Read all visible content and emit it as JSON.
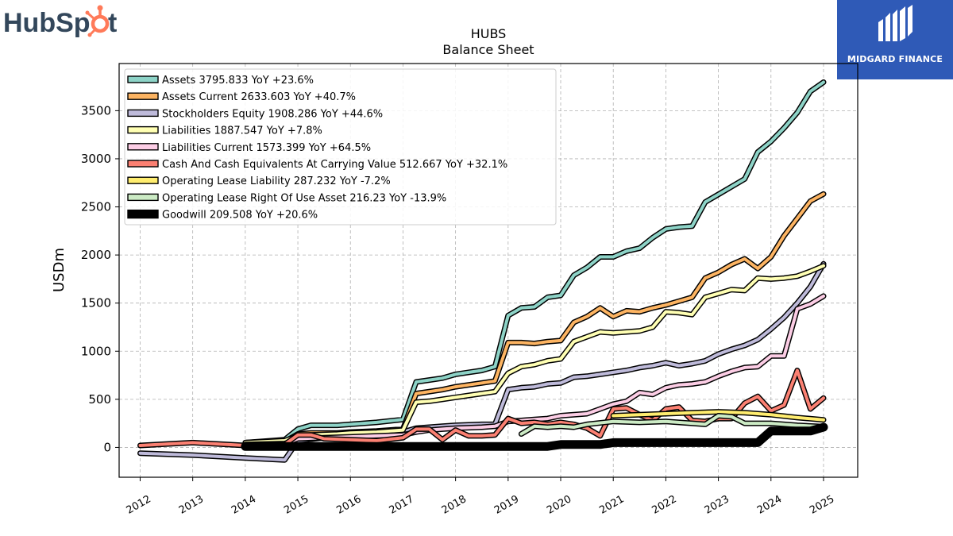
{
  "branding": {
    "left_logo_text": "HubSpot",
    "right_logo_text": "MIDGARD FINANCE",
    "hubspot_color": "#33475b",
    "hubspot_accent": "#ff7a59",
    "midgard_bg": "#2f5ab7"
  },
  "chart_data": {
    "type": "line",
    "title": "HUBS",
    "subtitle": "Balance  Sheet",
    "ylabel": "USDm",
    "xlabel": "",
    "xlim": [
      2011.6,
      2025.65
    ],
    "ylim": [
      -310,
      3990
    ],
    "yticks": [
      0,
      500,
      1000,
      1500,
      2000,
      2500,
      3000,
      3500
    ],
    "xticks": [
      "2012",
      "2013",
      "2014",
      "2015",
      "2016",
      "2017",
      "2018",
      "2019",
      "2020",
      "2021",
      "2022",
      "2023",
      "2024",
      "2025"
    ],
    "grid": true,
    "legend_position": "top-left",
    "series": [
      {
        "name": "Assets  3795.833 YoY +23.6%",
        "color": "#8dd3c7",
        "width": 4,
        "x": [
          2014.0,
          2014.75,
          2015.0,
          2015.25,
          2015.75,
          2016.0,
          2016.5,
          2017.0,
          2017.25,
          2017.5,
          2017.75,
          2018.0,
          2018.25,
          2018.5,
          2018.75,
          2019.0,
          2019.25,
          2019.5,
          2019.75,
          2020.0,
          2020.25,
          2020.5,
          2020.75,
          2021.0,
          2021.25,
          2021.5,
          2021.75,
          2022.0,
          2022.25,
          2022.5,
          2022.75,
          2023.0,
          2023.25,
          2023.5,
          2023.75,
          2024.0,
          2024.25,
          2024.5,
          2024.75,
          2025.0
        ],
        "y": [
          50,
          80,
          190,
          230,
          230,
          240,
          260,
          290,
          680,
          700,
          720,
          760,
          780,
          800,
          840,
          1370,
          1450,
          1460,
          1560,
          1580,
          1790,
          1870,
          1980,
          1980,
          2040,
          2070,
          2180,
          2270,
          2290,
          2300,
          2550,
          2630,
          2710,
          2790,
          3070,
          3180,
          3320,
          3480,
          3700,
          3796
        ]
      },
      {
        "name": "Assets Current  2633.603 YoY +40.7%",
        "color": "#fdb462",
        "width": 4,
        "x": [
          2014.0,
          2014.75,
          2015.0,
          2015.25,
          2015.75,
          2016.0,
          2016.5,
          2017.0,
          2017.25,
          2017.5,
          2017.75,
          2018.0,
          2018.25,
          2018.5,
          2018.75,
          2019.0,
          2019.25,
          2019.5,
          2019.75,
          2020.0,
          2020.25,
          2020.5,
          2020.75,
          2021.0,
          2021.25,
          2021.5,
          2021.75,
          2022.0,
          2022.25,
          2022.5,
          2022.75,
          2023.0,
          2023.25,
          2023.5,
          2023.75,
          2024.0,
          2024.25,
          2024.5,
          2024.75,
          2025.0
        ],
        "y": [
          40,
          60,
          140,
          150,
          150,
          160,
          170,
          190,
          560,
          580,
          600,
          630,
          650,
          670,
          690,
          1090,
          1090,
          1080,
          1100,
          1110,
          1300,
          1360,
          1450,
          1360,
          1420,
          1410,
          1450,
          1480,
          1520,
          1560,
          1760,
          1820,
          1900,
          1960,
          1860,
          1980,
          2200,
          2380,
          2560,
          2634
        ]
      },
      {
        "name": "Stockholders Equity  1908.286 YoY +44.6%",
        "color": "#bebada",
        "width": 4,
        "x": [
          2012.0,
          2013.0,
          2014.0,
          2014.75,
          2015.0,
          2015.5,
          2016.0,
          2016.5,
          2017.0,
          2017.25,
          2017.5,
          2017.75,
          2018.0,
          2018.5,
          2018.75,
          2019.0,
          2019.25,
          2019.5,
          2019.75,
          2020.0,
          2020.25,
          2020.5,
          2020.75,
          2021.0,
          2021.25,
          2021.5,
          2021.75,
          2022.0,
          2022.25,
          2022.5,
          2022.75,
          2023.0,
          2023.25,
          2023.5,
          2023.75,
          2024.0,
          2024.25,
          2024.5,
          2024.75,
          2025.0
        ],
        "y": [
          -60,
          -80,
          -110,
          -130,
          70,
          100,
          120,
          140,
          160,
          200,
          210,
          220,
          230,
          240,
          240,
          600,
          620,
          630,
          660,
          670,
          730,
          740,
          760,
          780,
          800,
          830,
          850,
          880,
          850,
          870,
          900,
          970,
          1020,
          1060,
          1120,
          1230,
          1350,
          1500,
          1670,
          1908
        ]
      },
      {
        "name": "Liabilities  1887.547 YoY +7.8%",
        "color": "#ffffb3",
        "width": 4,
        "x": [
          2014.0,
          2014.75,
          2015.0,
          2015.25,
          2015.75,
          2016.0,
          2016.5,
          2017.0,
          2017.25,
          2017.5,
          2017.75,
          2018.0,
          2018.25,
          2018.5,
          2018.75,
          2019.0,
          2019.25,
          2019.5,
          2019.75,
          2020.0,
          2020.25,
          2020.5,
          2020.75,
          2021.0,
          2021.25,
          2021.5,
          2021.75,
          2022.0,
          2022.25,
          2022.5,
          2022.75,
          2023.0,
          2023.25,
          2023.5,
          2023.75,
          2024.0,
          2024.25,
          2024.5,
          2024.75,
          2025.0
        ],
        "y": [
          50,
          70,
          120,
          130,
          140,
          150,
          160,
          180,
          470,
          480,
          500,
          520,
          540,
          560,
          580,
          770,
          840,
          860,
          900,
          920,
          1100,
          1150,
          1200,
          1190,
          1200,
          1210,
          1250,
          1410,
          1400,
          1380,
          1560,
          1600,
          1640,
          1630,
          1760,
          1750,
          1760,
          1780,
          1830,
          1888
        ]
      },
      {
        "name": "Liabilities Current  1573.399 YoY +64.5%",
        "color": "#fccde5",
        "width": 4,
        "x": [
          2014.0,
          2014.75,
          2015.0,
          2015.5,
          2016.0,
          2016.5,
          2017.0,
          2017.25,
          2017.5,
          2017.75,
          2018.0,
          2018.5,
          2018.75,
          2019.0,
          2019.25,
          2019.5,
          2019.75,
          2020.0,
          2020.25,
          2020.5,
          2020.75,
          2021.0,
          2021.25,
          2021.5,
          2021.75,
          2022.0,
          2022.25,
          2022.5,
          2022.75,
          2023.0,
          2023.25,
          2023.5,
          2023.75,
          2024.0,
          2024.25,
          2024.5,
          2024.75,
          2025.0
        ],
        "y": [
          30,
          40,
          90,
          100,
          110,
          120,
          130,
          160,
          180,
          190,
          200,
          210,
          220,
          270,
          280,
          290,
          300,
          330,
          340,
          350,
          400,
          450,
          480,
          570,
          550,
          620,
          650,
          660,
          680,
          740,
          790,
          830,
          840,
          950,
          950,
          1440,
          1490,
          1573
        ]
      },
      {
        "name": "Cash And Cash Equivalents At Carrying Value  512.667 YoY +32.1%",
        "color": "#fb8072",
        "width": 4,
        "x": [
          2012.0,
          2013.0,
          2014.0,
          2014.75,
          2015.0,
          2015.25,
          2015.5,
          2016.0,
          2016.5,
          2017.0,
          2017.25,
          2017.5,
          2017.75,
          2018.0,
          2018.25,
          2018.5,
          2018.75,
          2019.0,
          2019.25,
          2019.5,
          2019.75,
          2020.0,
          2020.25,
          2020.5,
          2020.75,
          2021.0,
          2021.25,
          2021.5,
          2021.75,
          2022.0,
          2022.25,
          2022.5,
          2022.75,
          2023.0,
          2023.25,
          2023.5,
          2023.75,
          2024.0,
          2024.25,
          2024.5,
          2024.75,
          2025.0
        ],
        "y": [
          20,
          50,
          20,
          30,
          130,
          130,
          90,
          80,
          70,
          100,
          190,
          190,
          80,
          180,
          120,
          120,
          130,
          300,
          250,
          260,
          240,
          260,
          240,
          200,
          120,
          400,
          410,
          340,
          280,
          400,
          420,
          280,
          270,
          300,
          300,
          460,
          530,
          380,
          440,
          800,
          400,
          513
        ]
      },
      {
        "name": "Operating Lease Liability  287.232 YoY -7.2%",
        "color": "#ffed6f",
        "width": 4,
        "x": [
          2021.0,
          2021.5,
          2022.0,
          2022.5,
          2023.0,
          2023.5,
          2024.0,
          2024.5,
          2025.0
        ],
        "y": [
          330,
          340,
          350,
          360,
          370,
          360,
          340,
          310,
          287
        ]
      },
      {
        "name": "Operating Lease Right Of Use Asset  216.23 YoY -13.9%",
        "color": "#ccebc5",
        "width": 4,
        "x": [
          2019.25,
          2019.5,
          2019.75,
          2020.0,
          2020.25,
          2020.5,
          2021.0,
          2021.5,
          2022.0,
          2022.5,
          2022.75,
          2023.0,
          2023.25,
          2023.5,
          2024.0,
          2024.5,
          2025.0
        ],
        "y": [
          140,
          220,
          210,
          220,
          210,
          240,
          270,
          260,
          270,
          250,
          240,
          330,
          320,
          250,
          250,
          230,
          216
        ]
      },
      {
        "name": "Goodwill  209.508 YoY +20.6%",
        "color": "#000000",
        "width": 8,
        "x": [
          2014.0,
          2015.0,
          2016.0,
          2017.0,
          2018.0,
          2019.0,
          2019.75,
          2020.0,
          2020.75,
          2021.0,
          2022.0,
          2022.75,
          2023.0,
          2023.75,
          2024.0,
          2024.5,
          2024.75,
          2025.0
        ],
        "y": [
          10,
          10,
          10,
          10,
          10,
          10,
          10,
          30,
          30,
          50,
          50,
          50,
          50,
          50,
          170,
          170,
          170,
          210
        ]
      }
    ]
  }
}
